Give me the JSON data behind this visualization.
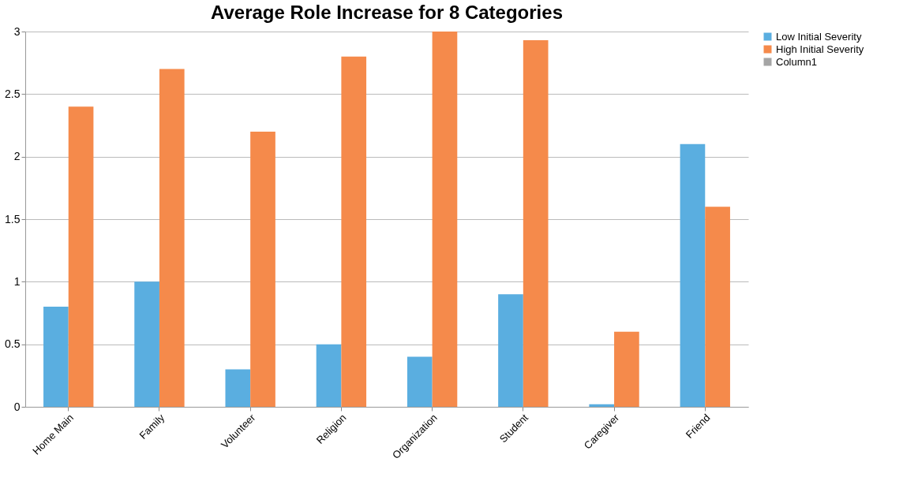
{
  "chart_data": {
    "type": "bar",
    "title": "Average Role Increase for 8 Categories",
    "categories": [
      "Home Main",
      "Family",
      "Volunteer",
      "Religion",
      "Organization",
      "Student",
      "Caregiver",
      "Friend"
    ],
    "series": [
      {
        "name": "Low Initial Severity",
        "color": "#5aaee0",
        "values": [
          0.8,
          1.0,
          0.3,
          0.5,
          0.4,
          0.9,
          0.02,
          2.1
        ]
      },
      {
        "name": "High Initial Severity",
        "color": "#f58a4b",
        "values": [
          2.4,
          2.7,
          2.2,
          2.8,
          3.0,
          2.93,
          0.6,
          1.6
        ]
      },
      {
        "name": "Column1",
        "color": "#a5a5a5",
        "values": [
          null,
          null,
          null,
          null,
          null,
          null,
          null,
          null
        ]
      }
    ],
    "ylim": [
      0,
      3
    ],
    "yticks": [
      0,
      0.5,
      1,
      1.5,
      2,
      2.5,
      3
    ],
    "grid": "y",
    "legend": "right"
  }
}
